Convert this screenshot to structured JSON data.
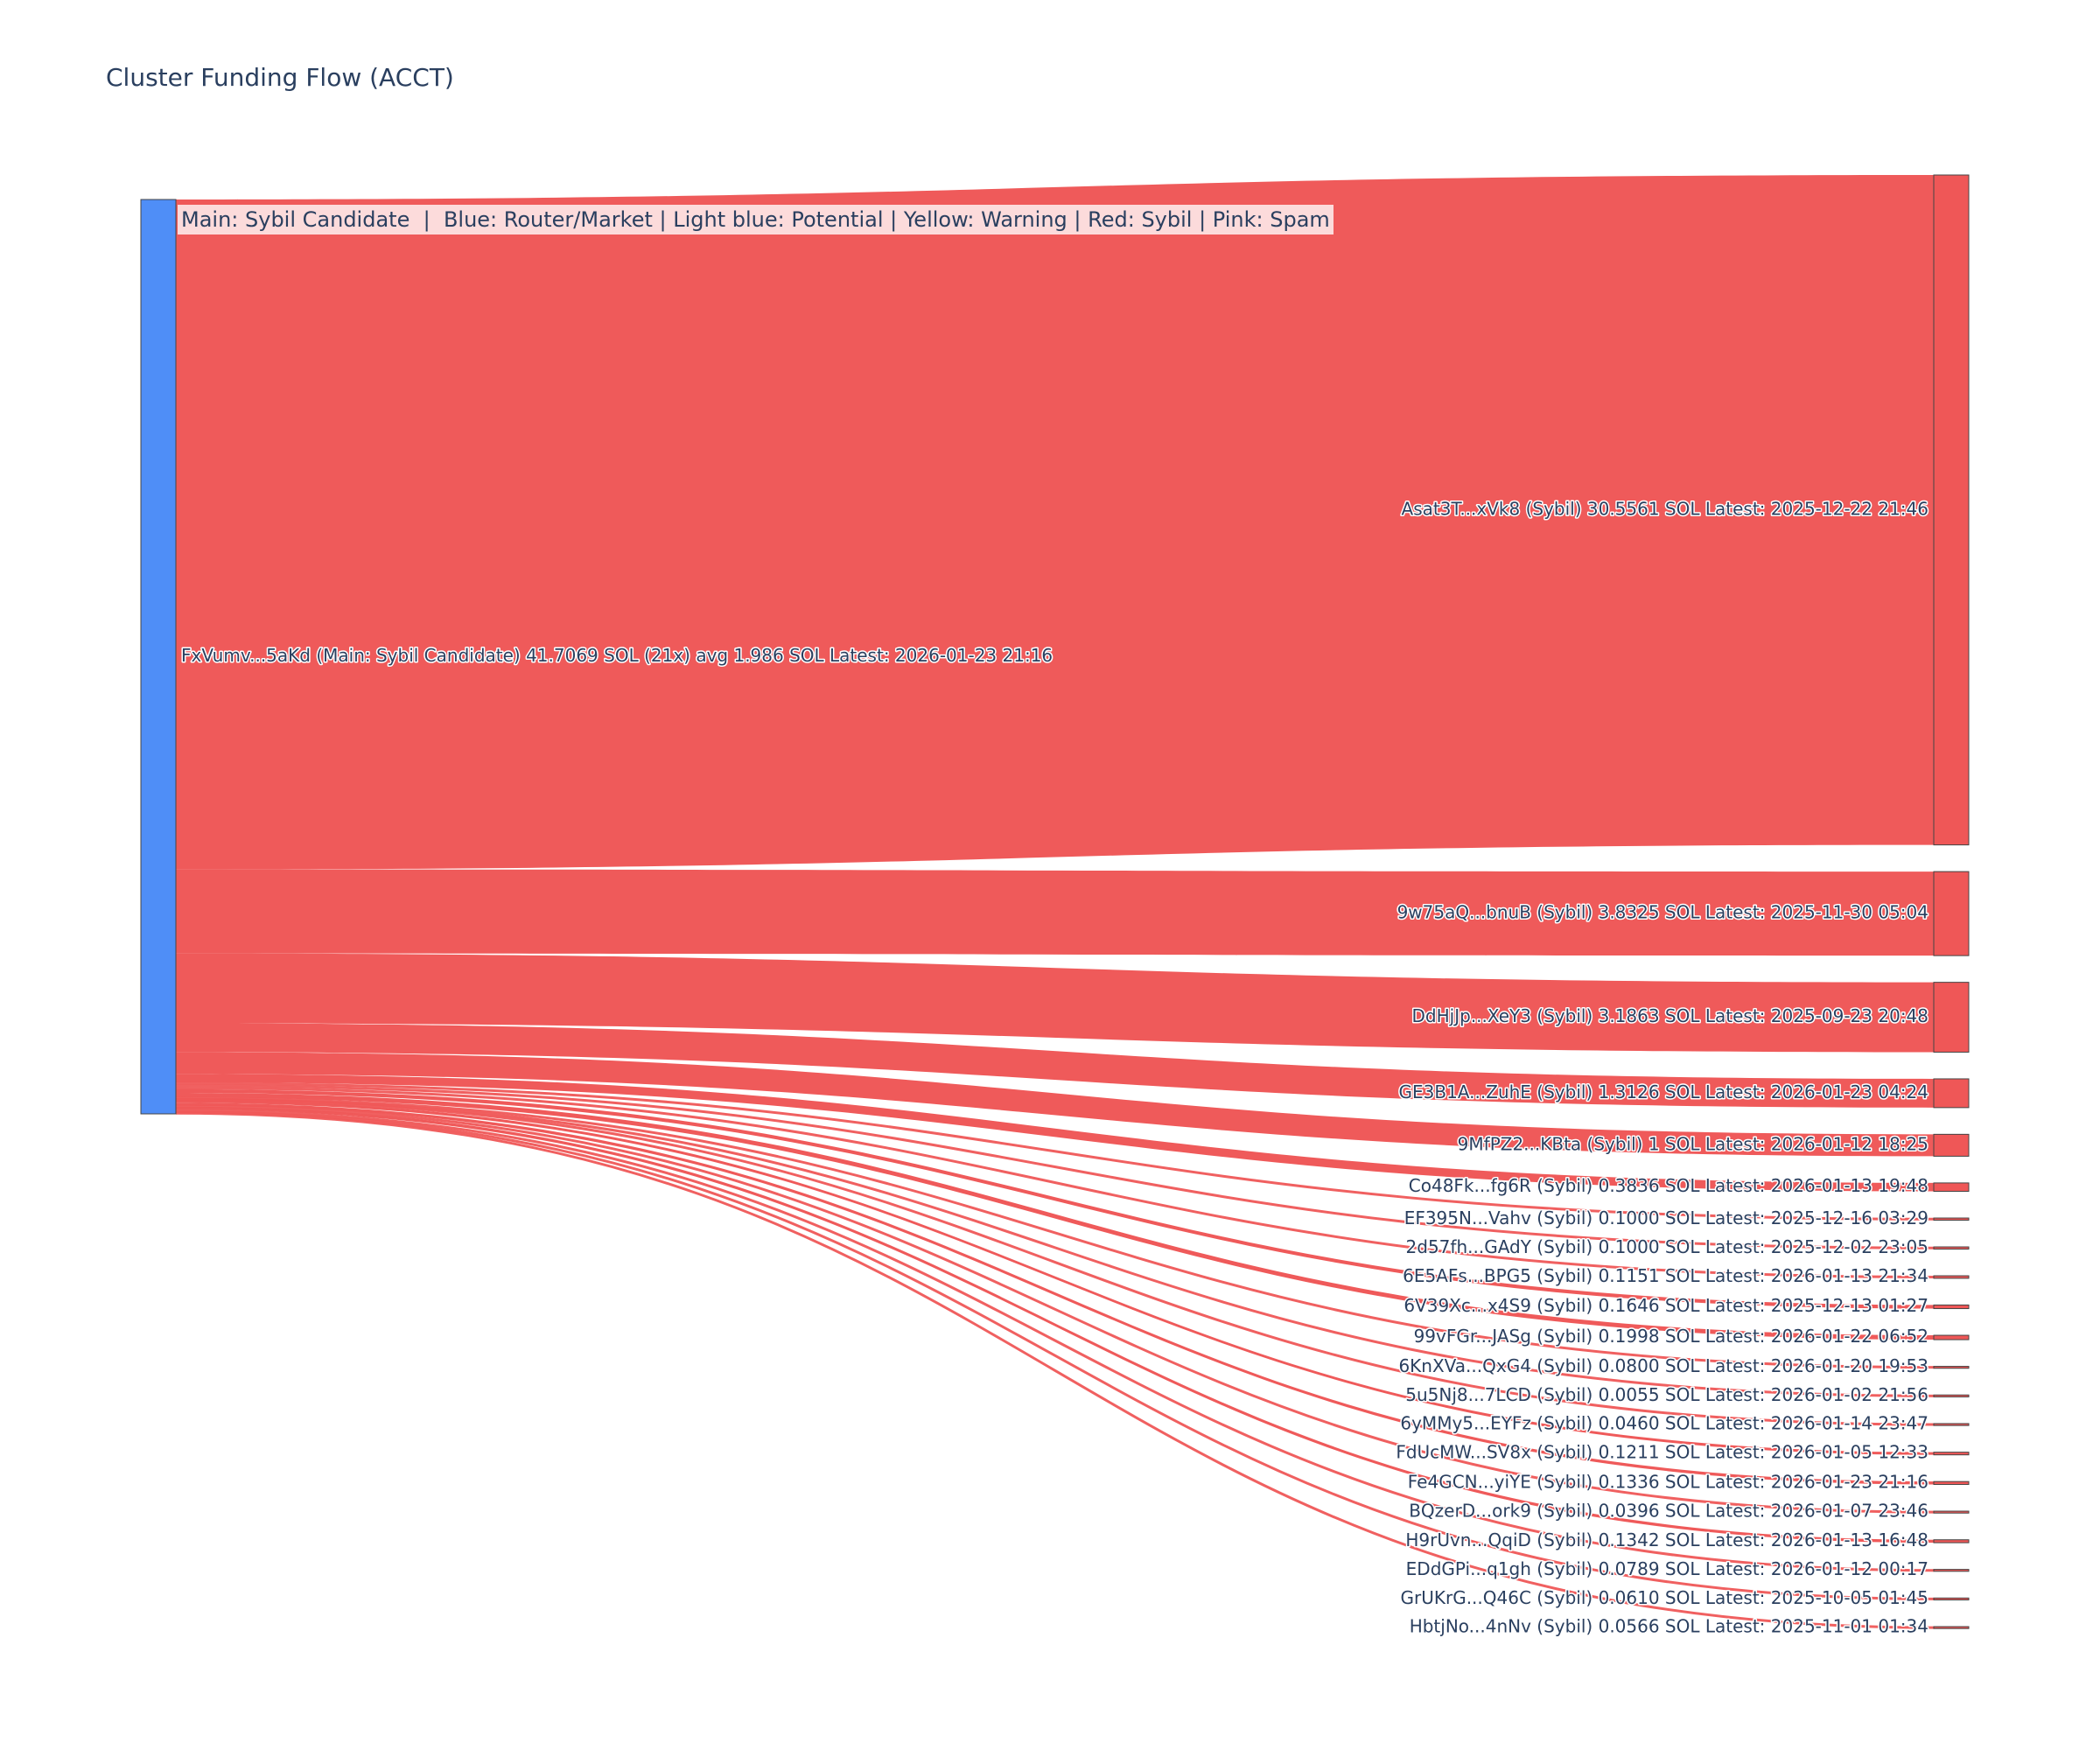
{
  "title": "Cluster Funding Flow (ACCT)",
  "legend_text": "Main: Sybil Candidate  |  Blue: Router/Market | Light blue: Potential | Yellow: Warning | Red: Sybil | Pink: Spam",
  "colors": {
    "source_node": "#4f8ef7",
    "sybil": "#ef5757",
    "node_border": "#444444",
    "text": "#2a3f5f"
  },
  "chart_data": {
    "type": "sankey",
    "source": {
      "label": "FxVumv...5aKd (Main: Sybil Candidate) 41.7069 SOL (21x) avg 1.986 SOL Latest: 2026-01-23 21:16",
      "value": 41.7069
    },
    "targets": [
      {
        "label": "Asat3T...xVk8 (Sybil) 30.5561 SOL Latest: 2025-12-22 21:46",
        "value": 30.5561
      },
      {
        "label": "9w75aQ...bnuB (Sybil) 3.8325 SOL Latest: 2025-11-30 05:04",
        "value": 3.8325
      },
      {
        "label": "DdHjJp...XeY3 (Sybil) 3.1863 SOL Latest: 2025-09-23 20:48",
        "value": 3.1863
      },
      {
        "label": "GE3B1A...ZuhE (Sybil) 1.3126 SOL Latest: 2026-01-23 04:24",
        "value": 1.3126
      },
      {
        "label": "9MfPZ2...KBta (Sybil) 1 SOL Latest: 2026-01-12 18:25",
        "value": 1
      },
      {
        "label": "Co48Fk...fg6R (Sybil) 0.3836 SOL Latest: 2026-01-13 19:48",
        "value": 0.3836
      },
      {
        "label": "EF395N...Vahv (Sybil) 0.1000 SOL Latest: 2025-12-16 03:29",
        "value": 0.1
      },
      {
        "label": "2d57fh...GAdY (Sybil) 0.1000 SOL Latest: 2025-12-02 23:05",
        "value": 0.1
      },
      {
        "label": "6E5AFs...BPG5 (Sybil) 0.1151 SOL Latest: 2026-01-13 21:34",
        "value": 0.1151
      },
      {
        "label": "6V39Xc...x4S9 (Sybil) 0.1646 SOL Latest: 2025-12-13 01:27",
        "value": 0.1646
      },
      {
        "label": "99vFGr...JASg (Sybil) 0.1998 SOL Latest: 2026-01-22 06:52",
        "value": 0.1998
      },
      {
        "label": "6KnXVa...QxG4 (Sybil) 0.0800 SOL Latest: 2026-01-20 19:53",
        "value": 0.08
      },
      {
        "label": "5u5Nj8...7LCD (Sybil) 0.0055 SOL Latest: 2026-01-02 21:56",
        "value": 0.0055
      },
      {
        "label": "6yMMy5...EYFz (Sybil) 0.0460 SOL Latest: 2026-01-14 23:47",
        "value": 0.046
      },
      {
        "label": "FdUcMW...SV8x (Sybil) 0.1211 SOL Latest: 2026-01-05 12:33",
        "value": 0.1211
      },
      {
        "label": "Fe4GCN...yiYE (Sybil) 0.1336 SOL Latest: 2026-01-23 21:16",
        "value": 0.1336
      },
      {
        "label": "BQzerD...ork9 (Sybil) 0.0396 SOL Latest: 2026-01-07 23:46",
        "value": 0.0396
      },
      {
        "label": "H9rUvn...QqiD (Sybil) 0.1342 SOL Latest: 2026-01-13 16:48",
        "value": 0.1342
      },
      {
        "label": "EDdGPi...q1gh (Sybil) 0.0789 SOL Latest: 2026-01-12 00:17",
        "value": 0.0789
      },
      {
        "label": "GrUKrG...Q46C (Sybil) 0.0610 SOL Latest: 2025-10-05 01:45",
        "value": 0.061
      },
      {
        "label": "HbtjNo...4nNv (Sybil) 0.0566 SOL Latest: 2025-11-01 01:34",
        "value": 0.0566
      }
    ]
  }
}
